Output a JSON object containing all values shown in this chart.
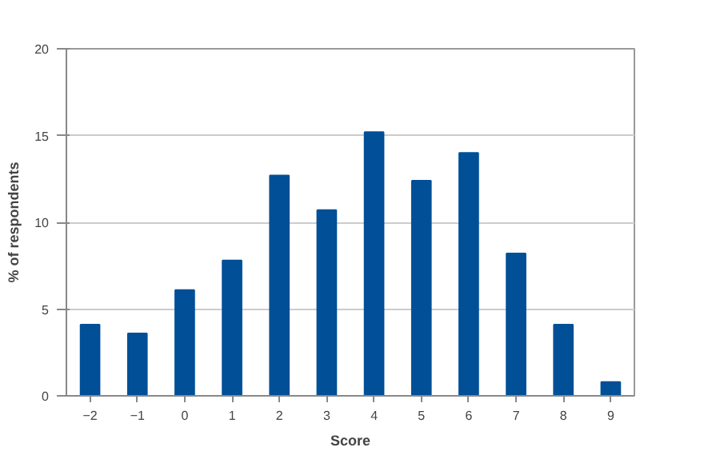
{
  "chart_data": {
    "type": "bar",
    "xlabel": "Score",
    "ylabel": "% of respondents",
    "categories": [
      "−2",
      "−1",
      "0",
      "1",
      "2",
      "3",
      "4",
      "5",
      "6",
      "7",
      "8",
      "9"
    ],
    "values": [
      4.1,
      3.6,
      6.1,
      7.8,
      12.7,
      10.7,
      15.2,
      12.4,
      14.0,
      8.2,
      4.1,
      0.8
    ],
    "color": "#004f97",
    "ylim": [
      0,
      20
    ],
    "yticks": [
      0,
      5,
      10,
      15,
      20
    ],
    "grid": "y"
  }
}
